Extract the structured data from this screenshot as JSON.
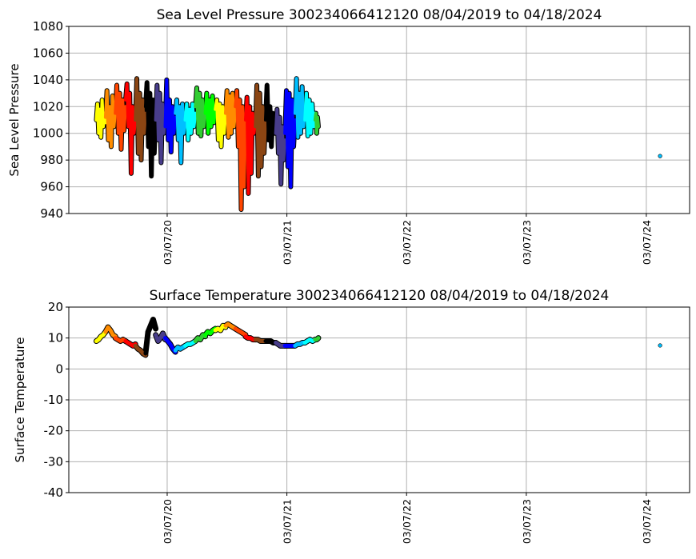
{
  "chart_data": [
    {
      "type": "line",
      "title": "Sea Level Pressure 300234066412120  08/04/2019 to 04/18/2024",
      "ylabel": "Sea Level Pressure",
      "xlabel": "",
      "ylim": [
        940,
        1080
      ],
      "yticks": [
        940,
        960,
        980,
        1000,
        1020,
        1040,
        1060,
        1080
      ],
      "xlim": [
        "2019-05-12",
        "2024-07-17"
      ],
      "xticks": [
        {
          "date": "2020-03-07",
          "label": "03/07/20"
        },
        {
          "date": "2021-03-07",
          "label": "03/07/21"
        },
        {
          "date": "2022-03-07",
          "label": "03/07/22"
        },
        {
          "date": "2023-03-07",
          "label": "03/07/23"
        },
        {
          "date": "2024-03-07",
          "label": "03/07/24"
        }
      ],
      "grid": true,
      "field": "pressure"
    },
    {
      "type": "line",
      "title": "Surface Temperature 300234066412120  08/04/2019 to 04/18/2024",
      "ylabel": "Surface Temperature",
      "xlabel": "",
      "ylim": [
        -40,
        20
      ],
      "yticks": [
        -40,
        -30,
        -20,
        -10,
        0,
        10,
        20
      ],
      "xlim": [
        "2019-05-12",
        "2024-07-17"
      ],
      "xticks": [
        {
          "date": "2020-03-07",
          "label": "03/07/20"
        },
        {
          "date": "2021-03-07",
          "label": "03/07/21"
        },
        {
          "date": "2022-03-07",
          "label": "03/07/22"
        },
        {
          "date": "2023-03-07",
          "label": "03/07/23"
        },
        {
          "date": "2024-03-07",
          "label": "03/07/24"
        }
      ],
      "grid": true,
      "field": "temperature"
    }
  ],
  "series_months": [
    {
      "month": "2019-08",
      "start": "2019-08-04",
      "color": "#ffff00",
      "pressure": [
        1010,
        1022,
        1000,
        1018,
        997,
        1025,
        1005,
        1015,
        1008
      ],
      "temperature": [
        9,
        9.5,
        10.5,
        11,
        12
      ]
    },
    {
      "month": "2019-09",
      "start": "2019-09-01",
      "color": "#ff8c00",
      "pressure": [
        1012,
        1032,
        995,
        1020,
        990,
        1028,
        1005,
        1018
      ],
      "temperature": [
        12,
        13.5,
        12.5,
        11,
        10.5
      ]
    },
    {
      "month": "2019-10",
      "start": "2019-10-01",
      "color": "#ff4500",
      "pressure": [
        1015,
        1036,
        1000,
        1030,
        988,
        1025,
        1002,
        1020
      ],
      "temperature": [
        10,
        9.5,
        9,
        9.5,
        9
      ]
    },
    {
      "month": "2019-11",
      "start": "2019-11-01",
      "color": "#ff0000",
      "pressure": [
        1025,
        1037,
        1005,
        1030,
        970,
        1020,
        1000,
        1010
      ],
      "temperature": [
        9,
        8.5,
        8,
        7.5,
        8
      ]
    },
    {
      "month": "2019-12",
      "start": "2019-12-01",
      "color": "#8b4513",
      "pressure": [
        1010,
        1041,
        985,
        1030,
        980,
        1025,
        1000,
        1015
      ],
      "temperature": [
        7.5,
        6.5,
        6,
        5,
        4.5
      ]
    },
    {
      "month": "2020-01",
      "start": "2020-01-01",
      "color": "#000000",
      "pressure": [
        1020,
        1038,
        990,
        1030,
        968,
        1025,
        985,
        1012
      ],
      "temperature": [
        5,
        12,
        14,
        16,
        13
      ]
    },
    {
      "month": "2020-02",
      "start": "2020-02-01",
      "color": "#483d8b",
      "pressure": [
        1010,
        1036,
        995,
        1030,
        978,
        1022,
        1000,
        1015
      ],
      "temperature": [
        11,
        9,
        10,
        11.5,
        9.5
      ]
    },
    {
      "month": "2020-03",
      "start": "2020-03-01",
      "color": "#0000ff",
      "pressure": [
        1005,
        1040,
        995,
        1025,
        986,
        1020,
        1000,
        1012
      ],
      "temperature": [
        10,
        9,
        8,
        6.5,
        5.5
      ]
    },
    {
      "month": "2020-04",
      "start": "2020-04-01",
      "color": "#00bfff",
      "pressure": [
        1015,
        1025,
        995,
        1020,
        978,
        1022,
        1000,
        1010
      ],
      "temperature": [
        6,
        7,
        6.5,
        7,
        7.5
      ]
    },
    {
      "month": "2020-05",
      "start": "2020-05-01",
      "color": "#00ffff",
      "pressure": [
        1010,
        1022,
        995,
        1018,
        1000,
        1022,
        1005,
        1015
      ],
      "temperature": [
        7.5,
        8,
        8,
        8.5,
        9
      ]
    },
    {
      "month": "2020-06",
      "start": "2020-06-01",
      "color": "#32cd32",
      "pressure": [
        1020,
        1034,
        1000,
        1030,
        998,
        1025,
        1005,
        1020
      ],
      "temperature": [
        9,
        10,
        9.5,
        11,
        10.5
      ]
    },
    {
      "month": "2020-07",
      "start": "2020-07-01",
      "color": "#00ff00",
      "pressure": [
        1015,
        1030,
        1000,
        1025,
        1005,
        1028,
        1008,
        1020
      ],
      "temperature": [
        11,
        12,
        11.5,
        12.5,
        13
      ]
    },
    {
      "month": "2020-08",
      "start": "2020-08-01",
      "color": "#ffff00",
      "pressure": [
        1018,
        1025,
        995,
        1022,
        990,
        1020,
        1000,
        1015
      ],
      "temperature": [
        12.5,
        13,
        12.5,
        14,
        13.5
      ]
    },
    {
      "month": "2020-09",
      "start": "2020-09-01",
      "color": "#ff8c00",
      "pressure": [
        1015,
        1032,
        997,
        1028,
        1000,
        1030,
        1005,
        1018
      ],
      "temperature": [
        14,
        14.5,
        14,
        13.5,
        13
      ]
    },
    {
      "month": "2020-10",
      "start": "2020-10-01",
      "color": "#ff4500",
      "pressure": [
        1020,
        1032,
        990,
        1025,
        943,
        1020,
        960,
        1010
      ],
      "temperature": [
        13,
        12.5,
        12,
        11.5,
        11
      ]
    },
    {
      "month": "2020-11",
      "start": "2020-11-01",
      "color": "#ff0000",
      "pressure": [
        1010,
        1027,
        955,
        1020,
        970,
        1015,
        1000,
        1010
      ],
      "temperature": [
        10.5,
        10,
        10,
        9.5,
        9.5
      ]
    },
    {
      "month": "2020-12",
      "start": "2020-12-01",
      "color": "#8b4513",
      "pressure": [
        1005,
        1036,
        968,
        1030,
        975,
        1020,
        985,
        1010
      ],
      "temperature": [
        9.5,
        9.5,
        9,
        9,
        9
      ]
    },
    {
      "month": "2021-01",
      "start": "2021-01-01",
      "color": "#000000",
      "pressure": [
        1010,
        1036,
        995,
        1020,
        990,
        1015,
        1000,
        1005
      ],
      "temperature": [
        9,
        9,
        9,
        8.5,
        8.5
      ]
    },
    {
      "month": "2021-02",
      "start": "2021-02-01",
      "color": "#483d8b",
      "pressure": [
        1000,
        1018,
        985,
        1012,
        962,
        1005,
        980,
        995
      ],
      "temperature": [
        8.5,
        8,
        7.5,
        7.5,
        7.5
      ]
    },
    {
      "month": "2021-03",
      "start": "2021-03-01",
      "color": "#0000ff",
      "pressure": [
        1000,
        1032,
        975,
        1030,
        960,
        1025,
        990,
        1010
      ],
      "temperature": [
        7.5,
        7.5,
        7.5,
        7.5,
        7.5
      ]
    },
    {
      "month": "2021-04",
      "start": "2021-04-01",
      "color": "#00bfff",
      "pressure": [
        1015,
        1041,
        997,
        1030,
        1000,
        1035,
        1005,
        1020
      ],
      "temperature": [
        7.5,
        8,
        8,
        8.5,
        8.5
      ]
    },
    {
      "month": "2021-05",
      "start": "2021-05-01",
      "color": "#00ffff",
      "pressure": [
        1010,
        1030,
        998,
        1025,
        1000,
        1022,
        1005,
        1015
      ],
      "temperature": [
        8.5,
        9,
        9.5,
        9,
        9.5
      ]
    },
    {
      "month": "2021-06",
      "start": "2021-06-01",
      "color": "#32cd32",
      "pressure": [
        1010,
        1015,
        1000,
        1012,
        1005
      ],
      "temperature": [
        9.5,
        9.5,
        10
      ]
    }
  ],
  "last_point": {
    "date": "2024-04-18",
    "color": "#00bfff",
    "pressure": 983,
    "temperature": 7.6
  }
}
